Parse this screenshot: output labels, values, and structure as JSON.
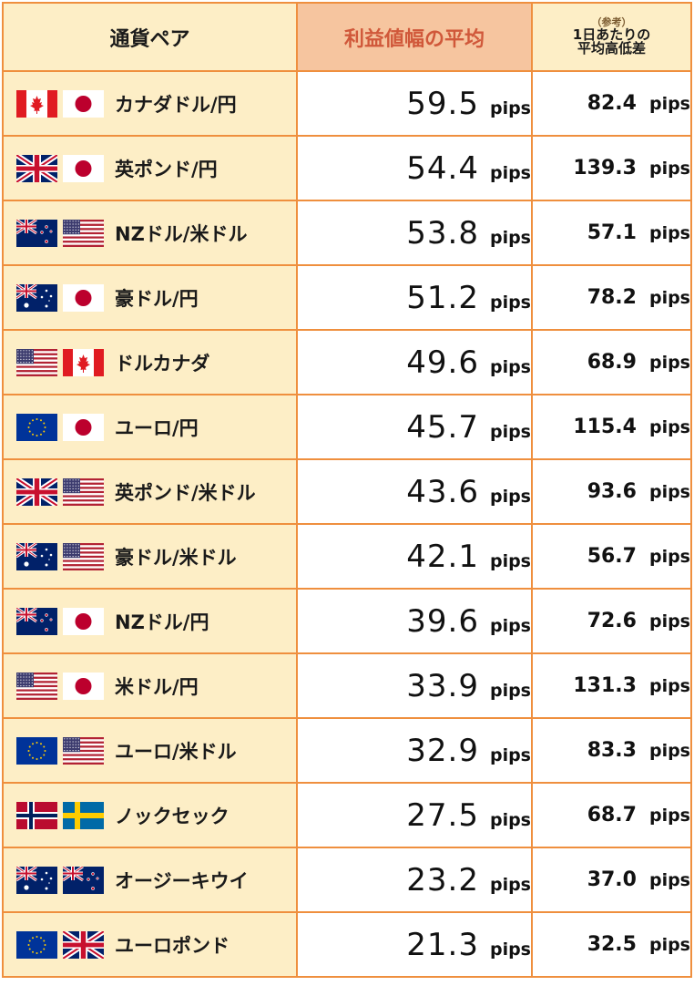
{
  "header": {
    "pair": "通貨ペア",
    "avg": "利益値幅の平均",
    "ref_small": "（参考）",
    "ref_line1": "1日あたりの",
    "ref_line2": "平均高低差"
  },
  "unit": "pips",
  "rows": [
    {
      "name": "カナダドル/円",
      "avg": "59.5",
      "ref": "82.4",
      "flags": [
        "ca",
        "jp"
      ]
    },
    {
      "name": "英ポンド/円",
      "avg": "54.4",
      "ref": "139.3",
      "flags": [
        "gb",
        "jp"
      ]
    },
    {
      "name": "NZドル/米ドル",
      "avg": "53.8",
      "ref": "57.1",
      "flags": [
        "nz",
        "us"
      ]
    },
    {
      "name": "豪ドル/円",
      "avg": "51.2",
      "ref": "78.2",
      "flags": [
        "au",
        "jp"
      ]
    },
    {
      "name": "ドルカナダ",
      "avg": "49.6",
      "ref": "68.9",
      "flags": [
        "us",
        "ca"
      ]
    },
    {
      "name": "ユーロ/円",
      "avg": "45.7",
      "ref": "115.4",
      "flags": [
        "eu",
        "jp"
      ]
    },
    {
      "name": "英ポンド/米ドル",
      "avg": "43.6",
      "ref": "93.6",
      "flags": [
        "gb",
        "us"
      ]
    },
    {
      "name": "豪ドル/米ドル",
      "avg": "42.1",
      "ref": "56.7",
      "flags": [
        "au",
        "us"
      ]
    },
    {
      "name": "NZドル/円",
      "avg": "39.6",
      "ref": "72.6",
      "flags": [
        "nz",
        "jp"
      ]
    },
    {
      "name": "米ドル/円",
      "avg": "33.9",
      "ref": "131.3",
      "flags": [
        "us",
        "jp"
      ]
    },
    {
      "name": "ユーロ/米ドル",
      "avg": "32.9",
      "ref": "83.3",
      "flags": [
        "eu",
        "us"
      ]
    },
    {
      "name": "ノックセック",
      "avg": "27.5",
      "ref": "68.7",
      "flags": [
        "no",
        "se"
      ]
    },
    {
      "name": "オージーキウイ",
      "avg": "23.2",
      "ref": "37.0",
      "flags": [
        "au",
        "nz"
      ]
    },
    {
      "name": "ユーロポンド",
      "avg": "21.3",
      "ref": "32.5",
      "flags": [
        "eu",
        "gb"
      ]
    }
  ],
  "flag_names": {
    "ca": "canada-flag-icon",
    "jp": "japan-flag-icon",
    "gb": "uk-flag-icon",
    "us": "usa-flag-icon",
    "nz": "new-zealand-flag-icon",
    "au": "australia-flag-icon",
    "eu": "eu-flag-icon",
    "no": "norway-flag-icon",
    "se": "sweden-flag-icon"
  },
  "colors": {
    "border": "#ef8f3e",
    "pair_bg": "#fdeec6",
    "avg_header_bg": "#f6c59f",
    "avg_header_text": "#d0583a"
  }
}
